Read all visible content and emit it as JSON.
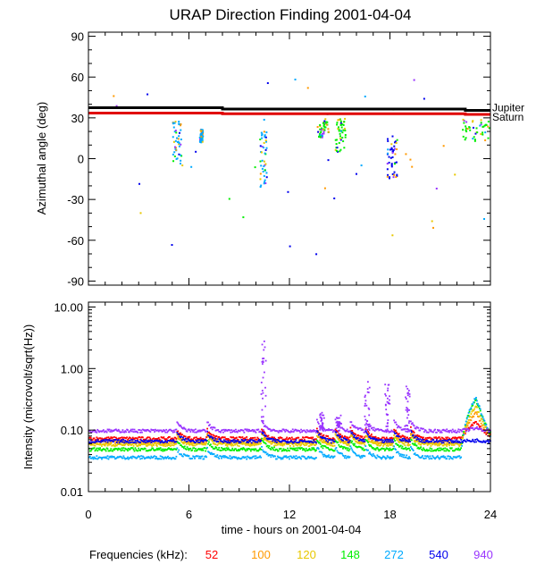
{
  "chart_data": [
    {
      "type": "scatter",
      "title": "URAP Direction Finding  2001-04-04",
      "ylabel": "Azimuthal angle (deg)",
      "xlim": [
        0,
        24
      ],
      "ylim": [
        -93,
        93
      ],
      "y_ticks": [
        "90",
        "60",
        "30",
        "0",
        "-30",
        "-60",
        "-90"
      ],
      "y_tick_values": [
        90,
        60,
        30,
        0,
        -30,
        -60,
        -90
      ],
      "reference_lines": [
        {
          "name": "Jupiter",
          "label": "Jupiter",
          "color": "#000000",
          "x": [
            0,
            8,
            8,
            22.5,
            22.5,
            24
          ],
          "y": [
            37.5,
            37.5,
            36.5,
            36.5,
            35.5,
            35.5
          ]
        },
        {
          "name": "Saturn",
          "label": "Saturn",
          "color": "#e00000",
          "x": [
            0,
            8,
            8,
            22.5,
            22.5,
            24
          ],
          "y": [
            33.5,
            33.5,
            33,
            33,
            32.5,
            32.5
          ]
        }
      ],
      "clusters": [
        {
          "x": [
            5.0,
            5.5
          ],
          "y": [
            -5,
            30
          ],
          "series": "272"
        },
        {
          "x": [
            6.6,
            6.8
          ],
          "y": [
            12,
            22
          ],
          "series": "272"
        },
        {
          "x": [
            10.2,
            10.6
          ],
          "y": [
            -22,
            22
          ],
          "series": "272"
        },
        {
          "x": [
            13.6,
            14.3
          ],
          "y": [
            16,
            30
          ],
          "series": "148"
        },
        {
          "x": [
            14.7,
            15.3
          ],
          "y": [
            4,
            30
          ],
          "series": "148"
        },
        {
          "x": [
            17.8,
            18.4
          ],
          "y": [
            -14,
            18
          ],
          "series": "540"
        },
        {
          "x": [
            22.3,
            23.9
          ],
          "y": [
            13,
            30
          ],
          "series": "148"
        }
      ]
    },
    {
      "type": "scatter",
      "ylabel": "Intensity (microvolt/sqrt(Hz))",
      "xlabel": "time - hours on 2001-04-04",
      "xlim": [
        0,
        24
      ],
      "yscale": "log",
      "ylim": [
        0.01,
        12
      ],
      "y_ticks": [
        "10.00",
        "1.00",
        "0.10",
        "0.01"
      ],
      "y_tick_values": [
        10,
        1,
        0.1,
        0.01
      ],
      "x_ticks": [
        "0",
        "6",
        "12",
        "18",
        "24"
      ],
      "x_tick_values": [
        0,
        6,
        12,
        18,
        24
      ],
      "series": [
        {
          "name": "52",
          "color": "#ff0000",
          "baseline": 0.075,
          "end": 0.14
        },
        {
          "name": "100",
          "color": "#ff9900",
          "baseline": 0.065,
          "end": 0.2
        },
        {
          "name": "120",
          "color": "#e8c800",
          "baseline": 0.06,
          "end": 0.25
        },
        {
          "name": "148",
          "color": "#00ee00",
          "baseline": 0.05,
          "end": 0.32
        },
        {
          "name": "272",
          "color": "#00aaff",
          "baseline": 0.037,
          "end": 0.35
        },
        {
          "name": "540",
          "color": "#0000ee",
          "baseline": 0.068,
          "end": 0.07
        },
        {
          "name": "940",
          "color": "#9933ff",
          "baseline": 0.1,
          "end": 0.11
        }
      ],
      "bursts_940": [
        {
          "x": 10.4,
          "peak": 3.0
        },
        {
          "x": 16.6,
          "peak": 0.65
        },
        {
          "x": 17.8,
          "peak": 0.6
        },
        {
          "x": 19.0,
          "peak": 0.6
        },
        {
          "x": 13.9,
          "peak": 0.2
        },
        {
          "x": 14.9,
          "peak": 0.18
        }
      ]
    }
  ],
  "legend": {
    "label": "Frequencies (kHz):",
    "items": [
      {
        "label": "52",
        "color": "#ff0000"
      },
      {
        "label": "100",
        "color": "#ff9900"
      },
      {
        "label": "120",
        "color": "#e8c800"
      },
      {
        "label": "148",
        "color": "#00ee00"
      },
      {
        "label": "272",
        "color": "#00aaff"
      },
      {
        "label": "540",
        "color": "#0000ee"
      },
      {
        "label": "940",
        "color": "#9933ff"
      }
    ]
  }
}
